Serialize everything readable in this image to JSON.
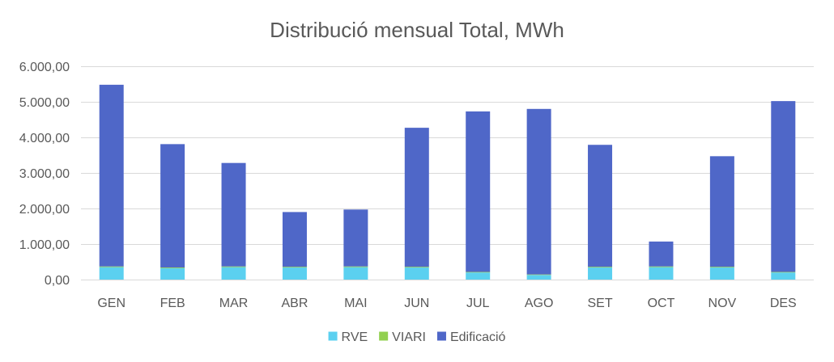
{
  "chart_data": {
    "type": "bar",
    "stacked": true,
    "title": "Distribució mensual Total, MWh",
    "categories": [
      "GEN",
      "FEB",
      "MAR",
      "ABR",
      "MAI",
      "JUN",
      "JUL",
      "AGO",
      "SET",
      "OCT",
      "NOV",
      "DES"
    ],
    "series": [
      {
        "name": "RVE",
        "color": "#5bd0f0",
        "values": [
          350,
          320,
          350,
          340,
          350,
          340,
          200,
          130,
          340,
          350,
          340,
          200
        ]
      },
      {
        "name": "VIARI",
        "color": "#92d050",
        "values": [
          20,
          20,
          20,
          20,
          20,
          20,
          15,
          15,
          20,
          20,
          20,
          15
        ]
      },
      {
        "name": "Edificació",
        "color": "#4f67c8",
        "values": [
          5110,
          3470,
          2910,
          1540,
          1600,
          3910,
          4515,
          4655,
          3430,
          700,
          3110,
          4805
        ]
      }
    ],
    "ylim": [
      0,
      6000
    ],
    "yticks": [
      0,
      1000,
      2000,
      3000,
      4000,
      5000,
      6000
    ],
    "ytick_labels": [
      "0,00",
      "1.000,00",
      "2.000,00",
      "3.000,00",
      "4.000,00",
      "5.000,00",
      "6.000,00"
    ],
    "grid": true,
    "legend_position": "bottom"
  }
}
